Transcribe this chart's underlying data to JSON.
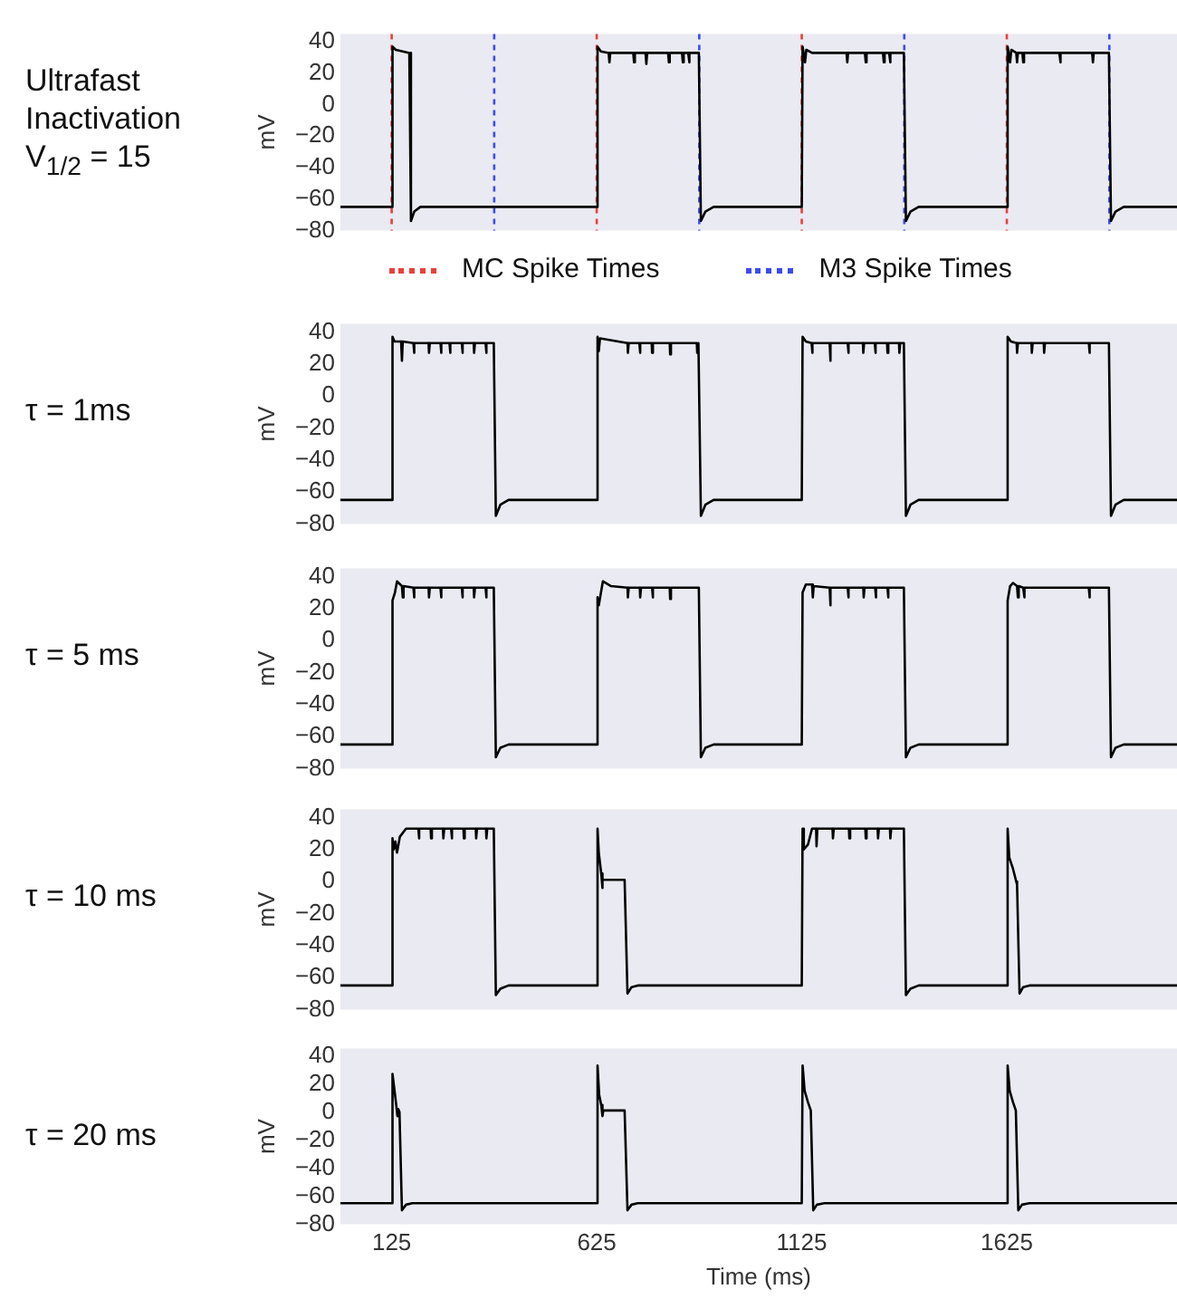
{
  "chart_data": [
    {
      "type": "line",
      "title": "Ultrafast Inactivation V$_{1/2}$ = 15",
      "ylabel": "mV",
      "xlim": [
        0,
        2040
      ],
      "ylim": [
        -80,
        45
      ],
      "yticks": [
        40,
        20,
        0,
        {
          "value": -20,
          "label": "−20"
        },
        {
          "value": -40,
          "label": "−40"
        },
        {
          "value": -60,
          "label": "−60"
        },
        {
          "value": -80,
          "label": "−80"
        }
      ],
      "tick_labels": "y",
      "grid": false,
      "legend": "bottom",
      "marker": "none",
      "series": [
        {
          "color": "#000000",
          "x": [
            0,
            125,
            127,
            135,
            168,
            172,
            180,
            195,
            625,
            627,
            635,
            654,
            656,
            658,
            714,
            716,
            718,
            744,
            746,
            748,
            799,
            801,
            803,
            833,
            835,
            837,
            848,
            850,
            852,
            874,
            879,
            890,
            910,
            1125,
            1127,
            1133,
            1136,
            1150,
            1234,
            1236,
            1238,
            1279,
            1281,
            1283,
            1323,
            1325,
            1327,
            1338,
            1340,
            1342,
            1374,
            1379,
            1390,
            1410,
            1625,
            1627,
            1633,
            1636,
            1648,
            1650,
            1652,
            1663,
            1665,
            1667,
            1753,
            1755,
            1757,
            1833,
            1835,
            1837,
            1874,
            1879,
            1890,
            1910,
            2040
          ],
          "values": [
            -65,
            -65,
            37,
            35,
            33,
            -74,
            -68,
            -65,
            -65,
            37,
            34,
            33,
            27,
            33,
            33,
            27,
            33,
            33,
            26,
            33,
            33,
            27,
            33,
            33,
            27,
            33,
            33,
            27,
            33,
            33,
            -74,
            -68,
            -65,
            -65,
            37,
            27,
            35,
            33,
            33,
            27,
            33,
            33,
            27,
            33,
            33,
            27,
            33,
            33,
            27,
            33,
            33,
            -74,
            -68,
            -65,
            -65,
            37,
            27,
            35,
            33,
            27,
            33,
            33,
            27,
            33,
            33,
            27,
            33,
            33,
            27,
            33,
            33,
            -74,
            -68,
            -65,
            -65
          ]
        }
      ],
      "ref_lines": [
        {
          "axis": "x",
          "value": 125,
          "label": "MC Spike Times",
          "color": "#e8413a",
          "line_style": "dotted"
        },
        {
          "axis": "x",
          "value": 625,
          "color": "#e8413a",
          "line_style": "dotted"
        },
        {
          "axis": "x",
          "value": 1125,
          "color": "#e8413a",
          "line_style": "dotted"
        },
        {
          "axis": "x",
          "value": 1625,
          "color": "#e8413a",
          "line_style": "dotted"
        },
        {
          "axis": "x",
          "value": 375,
          "label": "M3 Spike Times",
          "color": "#3b4cf0",
          "line_style": "dotted"
        },
        {
          "axis": "x",
          "value": 875,
          "color": "#3b4cf0",
          "line_style": "dotted"
        },
        {
          "axis": "x",
          "value": 1375,
          "color": "#3b4cf0",
          "line_style": "dotted"
        },
        {
          "axis": "x",
          "value": 1875,
          "color": "#3b4cf0",
          "line_style": "dotted"
        }
      ]
    },
    {
      "type": "line",
      "title": "τ = 1ms",
      "ylabel": "mV",
      "xlim": [
        0,
        2040
      ],
      "ylim": [
        -80,
        45
      ],
      "yticks": [
        40,
        20,
        0,
        {
          "value": -20,
          "label": "−20"
        },
        {
          "value": -40,
          "label": "−40"
        },
        {
          "value": -60,
          "label": "−60"
        },
        {
          "value": -80,
          "label": "−80"
        }
      ],
      "tick_labels": "y",
      "grid": false,
      "marker": "none",
      "series": [
        {
          "color": "#000000",
          "x": [
            0,
            125,
            127,
            132,
            148,
            150,
            152,
            178,
            179,
            181,
            215,
            216,
            218,
            244,
            245,
            247,
            266,
            267,
            269,
            296,
            297,
            299,
            325,
            326,
            328,
            354,
            355,
            357,
            374,
            379,
            390,
            410,
            625,
            627,
            630,
            633,
            700,
            701,
            703,
            729,
            730,
            732,
            759,
            760,
            762,
            803,
            804,
            806,
            869,
            870,
            872,
            874,
            879,
            890,
            910,
            1125,
            1127,
            1135,
            1149,
            1150,
            1152,
            1193,
            1194,
            1196,
            1237,
            1238,
            1240,
            1274,
            1275,
            1277,
            1303,
            1304,
            1306,
            1333,
            1334,
            1336,
            1362,
            1363,
            1365,
            1374,
            1379,
            1390,
            1410,
            1625,
            1627,
            1635,
            1649,
            1650,
            1652,
            1685,
            1686,
            1688,
            1715,
            1716,
            1718,
            1825,
            1826,
            1828,
            1874,
            1879,
            1890,
            1910,
            2040
          ],
          "values": [
            -65,
            -65,
            37,
            34,
            34,
            22,
            34,
            33,
            27,
            33,
            33,
            27,
            33,
            33,
            27,
            33,
            33,
            27,
            33,
            33,
            27,
            33,
            33,
            27,
            33,
            33,
            27,
            33,
            33,
            -75,
            -68,
            -65,
            -65,
            37,
            28,
            36,
            33,
            27,
            33,
            33,
            27,
            33,
            33,
            27,
            33,
            33,
            26,
            33,
            33,
            27,
            33,
            33,
            -75,
            -68,
            -65,
            -65,
            37,
            34,
            33,
            27,
            33,
            33,
            22,
            33,
            33,
            27,
            33,
            33,
            27,
            33,
            33,
            27,
            33,
            33,
            27,
            33,
            33,
            27,
            33,
            33,
            -75,
            -68,
            -65,
            -65,
            37,
            34,
            33,
            27,
            33,
            33,
            27,
            33,
            33,
            27,
            33,
            33,
            27,
            33,
            33,
            -75,
            -68,
            -65,
            -65
          ]
        }
      ]
    },
    {
      "type": "line",
      "title": "τ = 5 ms",
      "ylabel": "mV",
      "xlim": [
        0,
        2040
      ],
      "ylim": [
        -80,
        45
      ],
      "yticks": [
        40,
        20,
        0,
        {
          "value": -20,
          "label": "−20"
        },
        {
          "value": -40,
          "label": "−40"
        },
        {
          "value": -60,
          "label": "−60"
        },
        {
          "value": -80,
          "label": "−80"
        }
      ],
      "tick_labels": "y",
      "grid": false,
      "marker": "none",
      "series": [
        {
          "color": "#000000",
          "x": [
            0,
            125,
            127,
            133,
            138,
            150,
            152,
            154,
            178,
            179,
            181,
            215,
            216,
            218,
            244,
            245,
            247,
            296,
            297,
            299,
            325,
            326,
            328,
            354,
            355,
            357,
            374,
            379,
            390,
            410,
            625,
            627,
            630,
            640,
            660,
            700,
            701,
            703,
            730,
            731,
            733,
            760,
            761,
            763,
            803,
            804,
            806,
            874,
            879,
            890,
            910,
            1125,
            1127,
            1135,
            1150,
            1152,
            1154,
            1193,
            1194,
            1196,
            1237,
            1238,
            1240,
            1275,
            1276,
            1278,
            1304,
            1305,
            1307,
            1334,
            1335,
            1337,
            1374,
            1379,
            1390,
            1410,
            1625,
            1627,
            1633,
            1640,
            1650,
            1652,
            1654,
            1665,
            1667,
            1669,
            1825,
            1826,
            1828,
            1874,
            1879,
            1890,
            1910,
            2040
          ],
          "values": [
            -65,
            -65,
            25,
            30,
            37,
            34,
            27,
            34,
            33,
            27,
            33,
            33,
            27,
            33,
            33,
            27,
            33,
            33,
            27,
            33,
            33,
            27,
            33,
            33,
            27,
            33,
            33,
            -73,
            -67,
            -65,
            -65,
            27,
            22,
            37,
            34,
            33,
            27,
            33,
            33,
            27,
            33,
            33,
            27,
            33,
            33,
            26,
            33,
            33,
            -73,
            -67,
            -65,
            -65,
            30,
            35,
            35,
            27,
            34,
            33,
            22,
            33,
            33,
            27,
            33,
            33,
            27,
            33,
            33,
            27,
            33,
            33,
            27,
            33,
            33,
            -73,
            -67,
            -65,
            -65,
            25,
            34,
            36,
            34,
            27,
            34,
            33,
            27,
            33,
            33,
            27,
            33,
            33,
            -73,
            -67,
            -65,
            -65
          ]
        }
      ]
    },
    {
      "type": "line",
      "title": "τ = 10 ms",
      "ylabel": "mV",
      "xlim": [
        0,
        2040
      ],
      "ylim": [
        -80,
        45
      ],
      "yticks": [
        40,
        20,
        0,
        {
          "value": -20,
          "label": "−20"
        },
        {
          "value": -40,
          "label": "−40"
        },
        {
          "value": -60,
          "label": "−60"
        },
        {
          "value": -80,
          "label": "−80"
        }
      ],
      "tick_labels": "y",
      "grid": false,
      "marker": "none",
      "series": [
        {
          "color": "#000000",
          "x": [
            0,
            125,
            127,
            130,
            134,
            138,
            145,
            160,
            190,
            191,
            193,
            220,
            221,
            223,
            250,
            251,
            253,
            270,
            271,
            273,
            300,
            301,
            303,
            330,
            331,
            333,
            355,
            356,
            358,
            374,
            379,
            390,
            410,
            625,
            627,
            630,
            636,
            638,
            640,
            693,
            700,
            710,
            725,
            1125,
            1127,
            1130,
            1140,
            1150,
            1160,
            1161,
            1163,
            1200,
            1201,
            1203,
            1240,
            1241,
            1243,
            1280,
            1281,
            1283,
            1310,
            1311,
            1313,
            1340,
            1341,
            1343,
            1374,
            1379,
            1390,
            1410,
            1625,
            1627,
            1631,
            1640,
            1648,
            1650,
            1656,
            1665,
            1680,
            2040
          ],
          "values": [
            -65,
            -65,
            27,
            20,
            25,
            18,
            28,
            33,
            33,
            27,
            33,
            33,
            27,
            33,
            33,
            27,
            33,
            33,
            27,
            33,
            33,
            27,
            33,
            33,
            27,
            33,
            33,
            27,
            33,
            33,
            -71,
            -67,
            -65,
            -65,
            33,
            18,
            5,
            -4,
            1,
            1,
            -70,
            -66,
            -65,
            -65,
            33,
            20,
            23,
            33,
            33,
            22,
            33,
            33,
            27,
            33,
            33,
            27,
            33,
            33,
            27,
            33,
            33,
            27,
            33,
            33,
            27,
            33,
            33,
            -71,
            -67,
            -65,
            -65,
            33,
            15,
            8,
            0,
            -2,
            -70,
            -66,
            -65,
            -65
          ]
        }
      ]
    },
    {
      "type": "line",
      "title": "τ = 20 ms",
      "xlabel": "Time (ms)",
      "ylabel": "mV",
      "xlim": [
        0,
        2040
      ],
      "xticks": [
        125,
        625,
        1125,
        1625
      ],
      "ylim": [
        -80,
        45
      ],
      "yticks": [
        40,
        20,
        0,
        {
          "value": -20,
          "label": "−20"
        },
        {
          "value": -40,
          "label": "−40"
        },
        {
          "value": -60,
          "label": "−60"
        },
        {
          "value": -80,
          "label": "−80"
        }
      ],
      "grid": false,
      "marker": "none",
      "series": [
        {
          "color": "#000000",
          "x": [
            0,
            125,
            127,
            132,
            136,
            139,
            141,
            144,
            150,
            160,
            175,
            625,
            627,
            631,
            636,
            639,
            641,
            693,
            700,
            710,
            725,
            1125,
            1127,
            1132,
            1140,
            1147,
            1153,
            1162,
            1180,
            1625,
            1627,
            1632,
            1640,
            1647,
            1653,
            1662,
            1680,
            2040
          ],
          "values": [
            -65,
            -65,
            27,
            15,
            5,
            -3,
            2,
            0,
            -70,
            -66,
            -65,
            -65,
            33,
            12,
            5,
            -3,
            1,
            1,
            -70,
            -66,
            -65,
            -65,
            33,
            15,
            7,
            1,
            -70,
            -66,
            -65,
            -65,
            33,
            15,
            7,
            1,
            -70,
            -66,
            -65,
            -65
          ]
        }
      ]
    }
  ]
}
